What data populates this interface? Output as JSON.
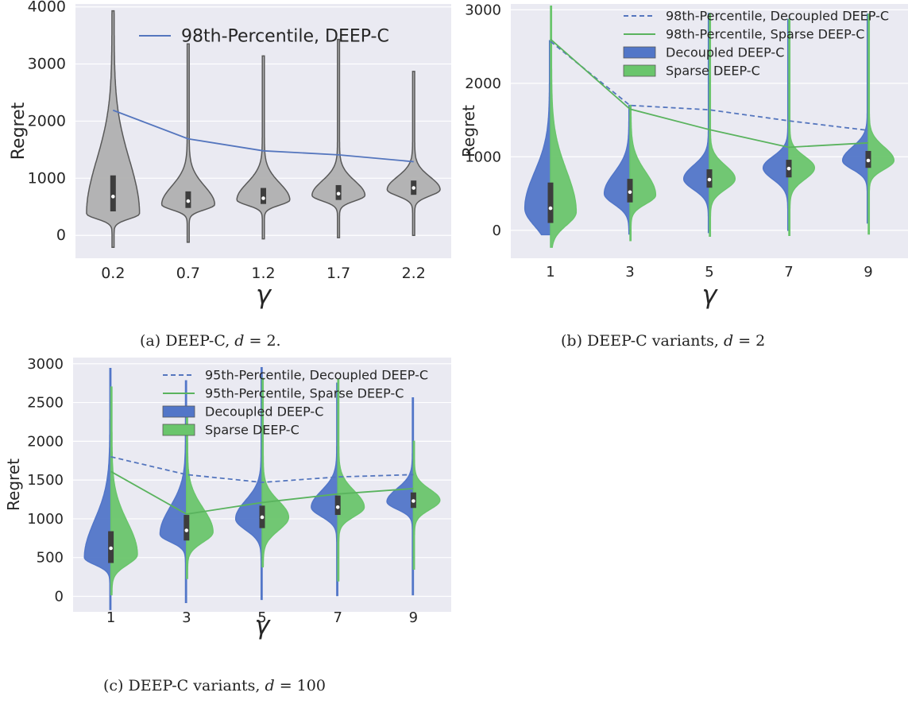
{
  "chart_data": [
    {
      "type": "violin",
      "caption": "(a) DEEP-C, d = 2.",
      "xlabel": "γ",
      "ylabel": "Regret",
      "categories": [
        "0.2",
        "0.7",
        "1.2",
        "1.7",
        "2.2"
      ],
      "ylim": [
        -400,
        4050
      ],
      "yticks": [
        0,
        1000,
        2000,
        3000,
        4000
      ],
      "grid": true,
      "legend_position": "top-right",
      "violin_color": "#b0b0b0",
      "lines": [
        {
          "name": "98th-Percentile, DEEP-C",
          "style": "solid",
          "color": "#5576be",
          "values": [
            2190,
            1690,
            1480,
            1410,
            1290
          ]
        }
      ],
      "violins": [
        {
          "name": "DEEP-C",
          "side": "both",
          "color": "#b0b0b0",
          "groups": [
            {
              "min": -210,
              "max": 3930,
              "mode": 380,
              "median": 680,
              "q1": 420,
              "q3": 1050
            },
            {
              "min": -120,
              "max": 3350,
              "mode": 540,
              "median": 600,
              "q1": 480,
              "q3": 770
            },
            {
              "min": -60,
              "max": 3140,
              "mode": 620,
              "median": 650,
              "q1": 550,
              "q3": 830
            },
            {
              "min": -40,
              "max": 3430,
              "mode": 700,
              "median": 730,
              "q1": 620,
              "q3": 880
            },
            {
              "min": 0,
              "max": 2870,
              "mode": 800,
              "median": 830,
              "q1": 710,
              "q3": 960
            }
          ]
        }
      ]
    },
    {
      "type": "violin",
      "caption": "(b) DEEP-C variants, d = 2",
      "xlabel": "γ",
      "ylabel": "Regret",
      "categories": [
        "1",
        "3",
        "5",
        "7",
        "9"
      ],
      "ylim": [
        -380,
        3080
      ],
      "yticks": [
        0,
        1000,
        2000,
        3000
      ],
      "grid": true,
      "legend_position": "top-right",
      "lines": [
        {
          "name": "98th-Percentile, Decoupled DEEP-C",
          "style": "dashed",
          "color": "#5576be",
          "values": [
            2570,
            1700,
            1640,
            1490,
            1360
          ]
        },
        {
          "name": "98th-Percentile, Sparse DEEP-C",
          "style": "solid",
          "color": "#5ab35e",
          "values": [
            2600,
            1650,
            1370,
            1130,
            1190
          ]
        }
      ],
      "violins": [
        {
          "name": "Decoupled DEEP-C",
          "side": "left",
          "color": "#5276c8",
          "groups": [
            {
              "min": -60,
              "max": 2580,
              "mode": 300,
              "median": 300,
              "q1": 100,
              "q3": 650
            },
            {
              "min": -50,
              "max": 1700,
              "mode": 500,
              "median": 520,
              "q1": 380,
              "q3": 700
            },
            {
              "min": -30,
              "max": 2950,
              "mode": 700,
              "median": 690,
              "q1": 580,
              "q3": 830
            },
            {
              "min": 0,
              "max": 2870,
              "mode": 850,
              "median": 840,
              "q1": 720,
              "q3": 960
            },
            {
              "min": 100,
              "max": 2940,
              "mode": 950,
              "median": 950,
              "q1": 850,
              "q3": 1080
            }
          ]
        },
        {
          "name": "Sparse DEEP-C",
          "side": "right",
          "color": "#6ac56c",
          "groups": [
            {
              "min": -230,
              "max": 3050,
              "mode": 250,
              "median": 300,
              "q1": 100,
              "q3": 650
            },
            {
              "min": -140,
              "max": 1700,
              "mode": 480,
              "median": 520,
              "q1": 380,
              "q3": 700
            },
            {
              "min": -80,
              "max": 2950,
              "mode": 700,
              "median": 690,
              "q1": 580,
              "q3": 830
            },
            {
              "min": -70,
              "max": 2870,
              "mode": 850,
              "median": 840,
              "q1": 720,
              "q3": 960
            },
            {
              "min": -50,
              "max": 2940,
              "mode": 950,
              "median": 950,
              "q1": 850,
              "q3": 1080
            }
          ]
        }
      ]
    },
    {
      "type": "violin",
      "caption": "(c) DEEP-C variants, d = 100",
      "xlabel": "γ",
      "ylabel": "Regret",
      "categories": [
        "1",
        "3",
        "5",
        "7",
        "9"
      ],
      "ylim": [
        -200,
        3080
      ],
      "yticks": [
        0,
        500,
        1000,
        1500,
        2000,
        2500,
        3000
      ],
      "grid": true,
      "legend_position": "top-right",
      "lines": [
        {
          "name": "95th-Percentile, Decoupled DEEP-C",
          "style": "dashed",
          "color": "#5576be",
          "values": [
            1800,
            1570,
            1470,
            1540,
            1570
          ]
        },
        {
          "name": "95th-Percentile, Sparse DEEP-C",
          "style": "solid",
          "color": "#5ab35e",
          "values": [
            1610,
            1060,
            1210,
            1320,
            1390
          ]
        }
      ],
      "violins": [
        {
          "name": "Decoupled DEEP-C",
          "side": "left",
          "color": "#5276c8",
          "groups": [
            {
              "min": -170,
              "max": 2940,
              "mode": 500,
              "median": 620,
              "q1": 430,
              "q3": 840
            },
            {
              "min": -80,
              "max": 2780,
              "mode": 800,
              "median": 850,
              "q1": 720,
              "q3": 1050
            },
            {
              "min": -40,
              "max": 2950,
              "mode": 1000,
              "median": 1020,
              "q1": 880,
              "q3": 1170
            },
            {
              "min": 10,
              "max": 2750,
              "mode": 1150,
              "median": 1150,
              "q1": 1050,
              "q3": 1300
            },
            {
              "min": 20,
              "max": 2560,
              "mode": 1220,
              "median": 1230,
              "q1": 1140,
              "q3": 1340
            }
          ]
        },
        {
          "name": "Sparse DEEP-C",
          "side": "right",
          "color": "#6ac56c",
          "groups": [
            {
              "min": 20,
              "max": 2700,
              "mode": 540,
              "median": 620,
              "q1": 430,
              "q3": 840
            },
            {
              "min": 230,
              "max": 2300,
              "mode": 830,
              "median": 850,
              "q1": 720,
              "q3": 1050
            },
            {
              "min": 380,
              "max": 2810,
              "mode": 1020,
              "median": 1020,
              "q1": 880,
              "q3": 1170
            },
            {
              "min": 200,
              "max": 2800,
              "mode": 1150,
              "median": 1150,
              "q1": 1050,
              "q3": 1300
            },
            {
              "min": 350,
              "max": 2000,
              "mode": 1240,
              "median": 1230,
              "q1": 1140,
              "q3": 1340
            }
          ]
        }
      ]
    }
  ]
}
